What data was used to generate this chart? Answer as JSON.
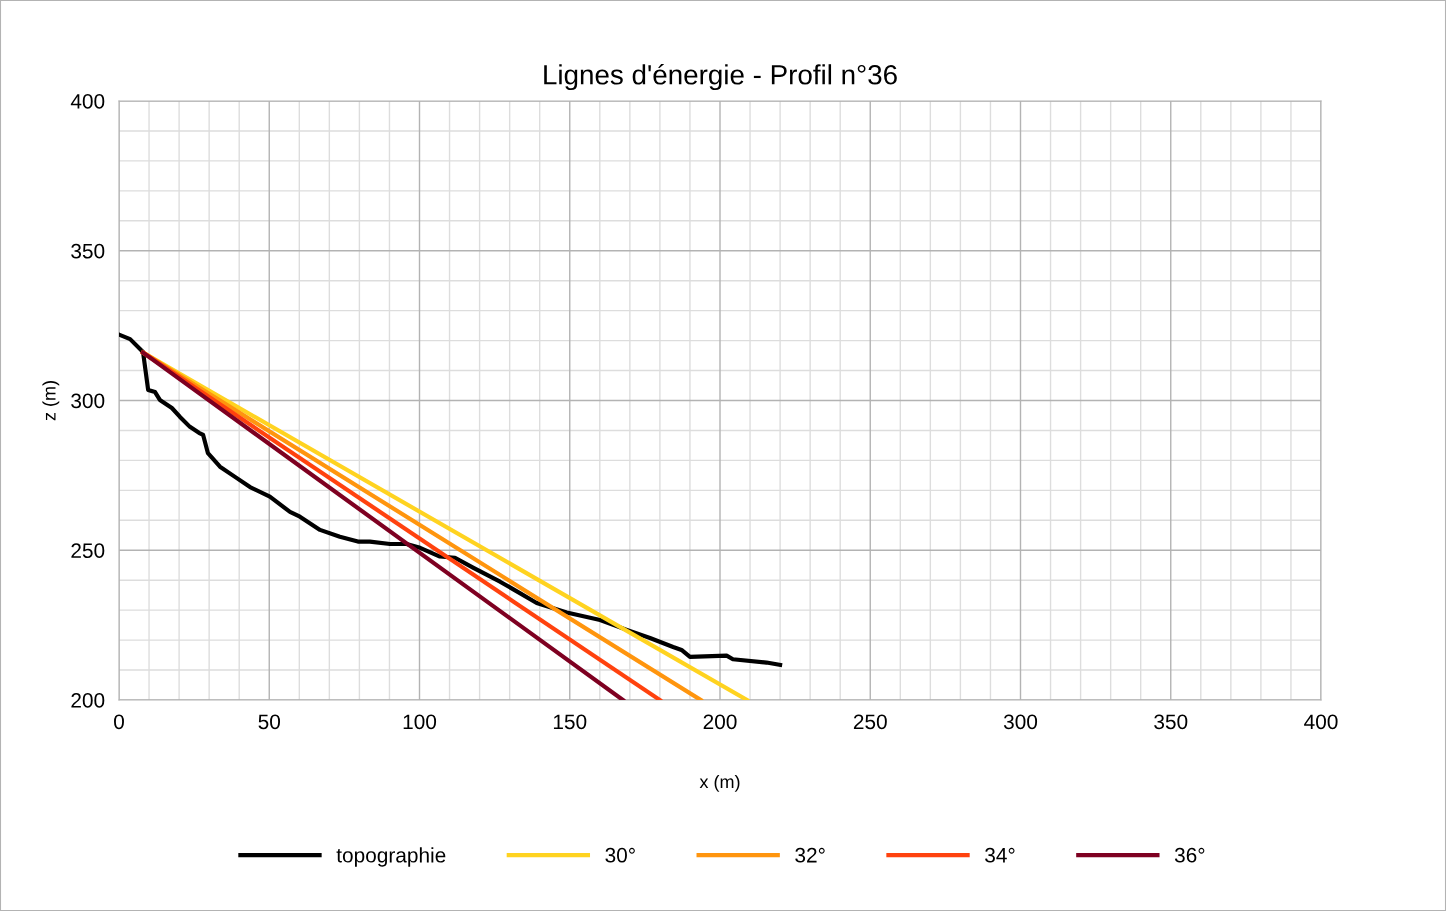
{
  "chart_data": {
    "type": "line",
    "title": "Lignes d'énergie - Profil n°36",
    "xlabel": "x (m)",
    "ylabel": "z (m)",
    "series": [
      {
        "name": "topographie",
        "color": "#000000",
        "x": [
          0,
          3.7,
          8,
          9.7,
          12,
          13.6,
          17.6,
          20.3,
          23.6,
          26.6,
          28,
          29.6,
          33.6,
          38.6,
          43.6,
          50.2,
          56.9,
          60.2,
          66.9,
          73.5,
          79.5,
          83.5,
          90.2,
          95.7,
          100.2,
          106.8,
          111.8,
          117.8,
          126.8,
          133.4,
          139,
          149,
          160.1,
          169,
          176.7,
          184.4,
          187.2,
          190,
          202.2,
          204.3,
          215.5,
          220
        ],
        "values": [
          322,
          320.5,
          316.2,
          303.5,
          302.8,
          300.2,
          297.5,
          294.5,
          291.2,
          289.2,
          288.5,
          282.4,
          277.9,
          274.5,
          271.1,
          267.9,
          262.8,
          261.2,
          256.8,
          254.5,
          252.9,
          252.9,
          252.1,
          252.1,
          250.8,
          247.9,
          247.5,
          244.2,
          239.5,
          235.7,
          232.4,
          229.2,
          226.7,
          223.4,
          220.7,
          217.7,
          216.7,
          214.4,
          214.8,
          213.6,
          212.5,
          211.7
        ]
      },
      {
        "name": "30°",
        "color": "#ffd320",
        "x": [
          8,
          209
        ],
        "values": [
          316,
          200
        ]
      },
      {
        "name": "32°",
        "color": "#ff950e",
        "x": [
          8,
          193.6
        ],
        "values": [
          316,
          200
        ]
      },
      {
        "name": "34°",
        "color": "#ff420e",
        "x": [
          8,
          180
        ],
        "values": [
          316,
          200
        ]
      },
      {
        "name": "36°",
        "color": "#7e0021",
        "x": [
          8,
          167.7
        ],
        "values": [
          316,
          200
        ]
      }
    ],
    "xlim": [
      0,
      400
    ],
    "ylim": [
      200,
      400
    ],
    "xticks": [
      0,
      {
        "value": 10,
        "label": null
      },
      {
        "value": 20,
        "label": null
      },
      {
        "value": 30,
        "label": null
      },
      {
        "value": 40,
        "label": null
      },
      50,
      {
        "value": 60,
        "label": null
      },
      {
        "value": 70,
        "label": null
      },
      {
        "value": 80,
        "label": null
      },
      {
        "value": 90,
        "label": null
      },
      100,
      {
        "value": 110,
        "label": null
      },
      {
        "value": 120,
        "label": null
      },
      {
        "value": 130,
        "label": null
      },
      {
        "value": 140,
        "label": null
      },
      150,
      {
        "value": 160,
        "label": null
      },
      {
        "value": 170,
        "label": null
      },
      {
        "value": 180,
        "label": null
      },
      {
        "value": 190,
        "label": null
      },
      200,
      {
        "value": 210,
        "label": null
      },
      {
        "value": 220,
        "label": null
      },
      {
        "value": 230,
        "label": null
      },
      {
        "value": 240,
        "label": null
      },
      250,
      {
        "value": 260,
        "label": null
      },
      {
        "value": 270,
        "label": null
      },
      {
        "value": 280,
        "label": null
      },
      {
        "value": 290,
        "label": null
      },
      300,
      {
        "value": 310,
        "label": null
      },
      {
        "value": 320,
        "label": null
      },
      {
        "value": 330,
        "label": null
      },
      {
        "value": 340,
        "label": null
      },
      350,
      {
        "value": 360,
        "label": null
      },
      {
        "value": 370,
        "label": null
      },
      {
        "value": 380,
        "label": null
      },
      {
        "value": 390,
        "label": null
      },
      400
    ],
    "yticks": [
      200,
      {
        "value": 210,
        "label": null
      },
      {
        "value": 220,
        "label": null
      },
      {
        "value": 230,
        "label": null
      },
      {
        "value": 240,
        "label": null
      },
      250,
      {
        "value": 260,
        "label": null
      },
      {
        "value": 270,
        "label": null
      },
      {
        "value": 280,
        "label": null
      },
      {
        "value": 290,
        "label": null
      },
      300,
      {
        "value": 310,
        "label": null
      },
      {
        "value": 320,
        "label": null
      },
      {
        "value": 330,
        "label": null
      },
      {
        "value": 340,
        "label": null
      },
      350,
      {
        "value": 360,
        "label": null
      },
      {
        "value": 370,
        "label": null
      },
      {
        "value": 380,
        "label": null
      },
      {
        "value": 390,
        "label": null
      },
      400
    ],
    "grid": true,
    "legend": "bottom",
    "marker": "none",
    "line_style": "solid"
  }
}
